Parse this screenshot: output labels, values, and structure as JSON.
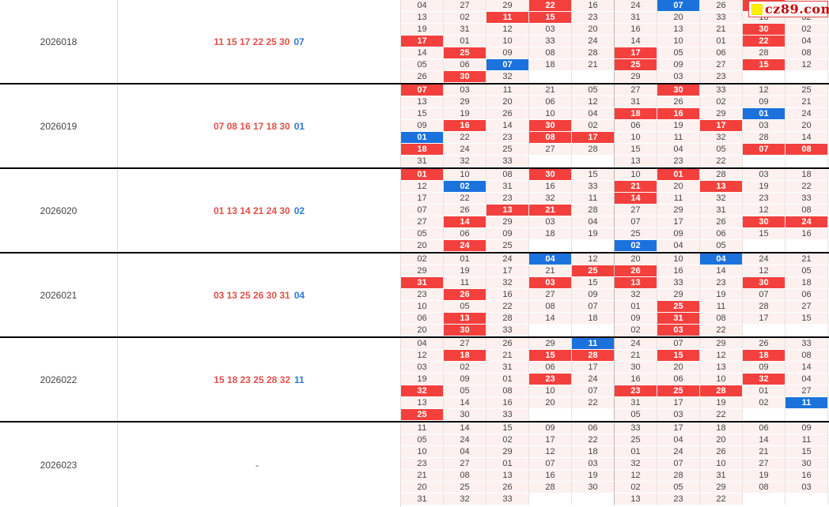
{
  "logo": {
    "text": "cz89.com"
  },
  "colors": {
    "red_cell": "#f4403d",
    "blue_cell": "#1b72dd",
    "plain_cell_bg": "#fdf1ef",
    "winning_red_text": "#e0504a",
    "winning_blue_text": "#2e7ad6"
  },
  "blocks": [
    {
      "issue": "2026018",
      "red_balls": "11 15 17 22 25 30",
      "blue_ball": "07",
      "grid": [
        [
          "04",
          "27",
          "29",
          "r22",
          "16",
          "24",
          "b07",
          "26",
          "r11",
          "19"
        ],
        [
          "13",
          "02",
          "r11",
          "r15",
          "23",
          "31",
          "20",
          "33",
          "18",
          "32"
        ],
        [
          "19",
          "31",
          "12",
          "03",
          "20",
          "16",
          "13",
          "21",
          "r30",
          "02"
        ],
        [
          "r17",
          "01",
          "10",
          "33",
          "24",
          "14",
          "10",
          "01",
          "r22",
          "04"
        ],
        [
          "14",
          "r25",
          "09",
          "08",
          "28",
          "r17",
          "05",
          "06",
          "28",
          "08"
        ],
        [
          "05",
          "06",
          "b07",
          "18",
          "21",
          "r25",
          "09",
          "27",
          "r15",
          "12"
        ],
        [
          "26",
          "r30",
          "32",
          "",
          "",
          "29",
          "03",
          "23",
          "",
          ""
        ]
      ]
    },
    {
      "issue": "2026019",
      "red_balls": "07 08 16 17 18 30",
      "blue_ball": "01",
      "grid": [
        [
          "r07",
          "03",
          "11",
          "21",
          "05",
          "27",
          "r30",
          "33",
          "12",
          "25"
        ],
        [
          "13",
          "29",
          "20",
          "06",
          "12",
          "31",
          "26",
          "02",
          "09",
          "21"
        ],
        [
          "15",
          "19",
          "26",
          "10",
          "04",
          "r18",
          "r16",
          "29",
          "b01",
          "24"
        ],
        [
          "09",
          "r16",
          "14",
          "r30",
          "02",
          "06",
          "19",
          "r17",
          "03",
          "20"
        ],
        [
          "b01",
          "22",
          "23",
          "r08",
          "r17",
          "10",
          "11",
          "32",
          "28",
          "14"
        ],
        [
          "r18",
          "24",
          "25",
          "27",
          "28",
          "15",
          "04",
          "05",
          "r07",
          "r08"
        ],
        [
          "31",
          "32",
          "33",
          "",
          "",
          "13",
          "23",
          "22",
          "",
          ""
        ]
      ]
    },
    {
      "issue": "2026020",
      "red_balls": "01 13 14 21 24 30",
      "blue_ball": "02",
      "grid": [
        [
          "r01",
          "10",
          "08",
          "r30",
          "15",
          "10",
          "r01",
          "28",
          "03",
          "18"
        ],
        [
          "12",
          "b02",
          "31",
          "16",
          "33",
          "r21",
          "20",
          "r13",
          "19",
          "22"
        ],
        [
          "17",
          "22",
          "23",
          "32",
          "11",
          "r14",
          "11",
          "32",
          "23",
          "33"
        ],
        [
          "07",
          "26",
          "r13",
          "r21",
          "28",
          "27",
          "29",
          "31",
          "12",
          "08"
        ],
        [
          "27",
          "r14",
          "29",
          "03",
          "04",
          "07",
          "17",
          "26",
          "r30",
          "r24"
        ],
        [
          "05",
          "06",
          "09",
          "18",
          "19",
          "25",
          "09",
          "06",
          "15",
          "16"
        ],
        [
          "20",
          "r24",
          "25",
          "",
          "",
          "b02",
          "04",
          "05",
          "",
          ""
        ]
      ]
    },
    {
      "issue": "2026021",
      "red_balls": "03 13 25 26 30 31",
      "blue_ball": "04",
      "grid": [
        [
          "02",
          "01",
          "24",
          "b04",
          "12",
          "20",
          "10",
          "b04",
          "24",
          "21"
        ],
        [
          "29",
          "19",
          "17",
          "21",
          "r25",
          "r26",
          "16",
          "14",
          "12",
          "05"
        ],
        [
          "r31",
          "11",
          "32",
          "r03",
          "15",
          "r13",
          "33",
          "23",
          "r30",
          "18"
        ],
        [
          "23",
          "r26",
          "16",
          "27",
          "09",
          "32",
          "29",
          "19",
          "07",
          "06"
        ],
        [
          "10",
          "05",
          "22",
          "08",
          "07",
          "01",
          "r25",
          "11",
          "28",
          "27"
        ],
        [
          "06",
          "r13",
          "28",
          "14",
          "18",
          "09",
          "r31",
          "08",
          "17",
          "15"
        ],
        [
          "20",
          "r30",
          "33",
          "",
          "",
          "02",
          "r03",
          "22",
          "",
          ""
        ]
      ]
    },
    {
      "issue": "2026022",
      "red_balls": "15 18 23 25 28 32",
      "blue_ball": "11",
      "grid": [
        [
          "04",
          "27",
          "26",
          "29",
          "b11",
          "24",
          "07",
          "29",
          "26",
          "33"
        ],
        [
          "12",
          "r18",
          "21",
          "r15",
          "r28",
          "21",
          "r15",
          "12",
          "r18",
          "08"
        ],
        [
          "03",
          "02",
          "31",
          "06",
          "17",
          "30",
          "20",
          "13",
          "09",
          "14"
        ],
        [
          "19",
          "09",
          "01",
          "r23",
          "24",
          "16",
          "06",
          "10",
          "r32",
          "04"
        ],
        [
          "r32",
          "05",
          "08",
          "10",
          "07",
          "r23",
          "r25",
          "r28",
          "01",
          "27"
        ],
        [
          "13",
          "14",
          "16",
          "20",
          "22",
          "31",
          "17",
          "19",
          "02",
          "b11"
        ],
        [
          "r25",
          "30",
          "33",
          "",
          "",
          "05",
          "03",
          "22",
          "",
          ""
        ]
      ]
    },
    {
      "issue": "2026023",
      "red_balls": "-",
      "blue_ball": "",
      "grid": [
        [
          "11",
          "14",
          "15",
          "09",
          "06",
          "33",
          "17",
          "18",
          "06",
          "09"
        ],
        [
          "05",
          "24",
          "02",
          "17",
          "22",
          "25",
          "04",
          "20",
          "14",
          "11"
        ],
        [
          "10",
          "04",
          "29",
          "12",
          "18",
          "01",
          "24",
          "26",
          "21",
          "15"
        ],
        [
          "23",
          "27",
          "01",
          "07",
          "03",
          "32",
          "07",
          "10",
          "27",
          "30"
        ],
        [
          "21",
          "08",
          "13",
          "16",
          "19",
          "12",
          "28",
          "31",
          "19",
          "16"
        ],
        [
          "20",
          "25",
          "26",
          "28",
          "30",
          "02",
          "05",
          "29",
          "08",
          "03"
        ],
        [
          "31",
          "32",
          "33",
          "",
          "",
          "13",
          "23",
          "22",
          "",
          ""
        ]
      ]
    }
  ]
}
